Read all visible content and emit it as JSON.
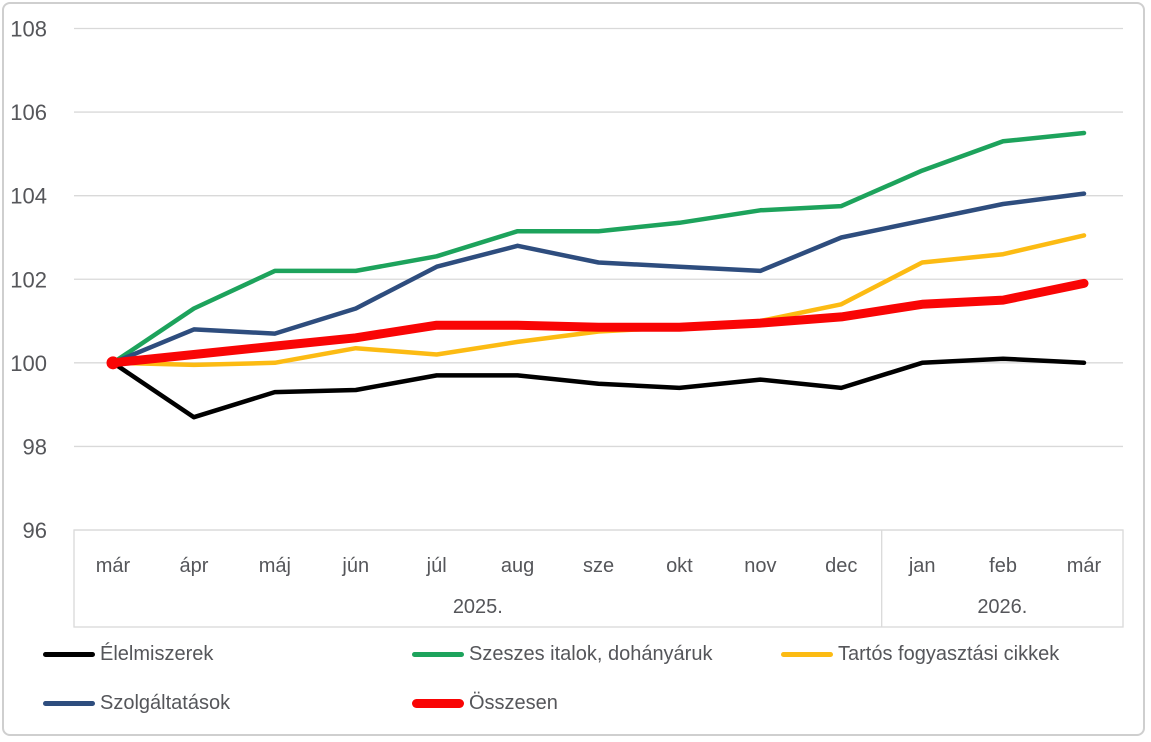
{
  "chart_data": {
    "type": "line",
    "title": "",
    "grid": "horizontal",
    "legend_position": "bottom",
    "x_axis": {
      "categories": [
        "már",
        "ápr",
        "máj",
        "jún",
        "júl",
        "aug",
        "sze",
        "okt",
        "nov",
        "dec",
        "jan",
        "feb",
        "már"
      ],
      "year_groups": [
        {
          "label": "2025.",
          "start_index": 0,
          "end_index": 9
        },
        {
          "label": "2026.",
          "start_index": 10,
          "end_index": 12
        }
      ]
    },
    "y_axis": {
      "ticks": [
        96,
        98,
        100,
        102,
        104,
        106,
        108
      ],
      "min": 96,
      "max": 108
    },
    "series": [
      {
        "name": "Élelmiszerek",
        "color": "#000000",
        "thick": false,
        "values": [
          100,
          98.7,
          99.3,
          99.35,
          99.7,
          99.7,
          99.5,
          99.4,
          99.6,
          99.4,
          100,
          100.1,
          100
        ]
      },
      {
        "name": "Szeszes italok, dohányáruk",
        "color": "#1da35c",
        "thick": false,
        "values": [
          100,
          101.3,
          102.2,
          102.2,
          102.55,
          103.15,
          103.15,
          103.35,
          103.65,
          103.75,
          104.6,
          105.3,
          105.5
        ]
      },
      {
        "name": "Tartós fogyasztási cikkek",
        "color": "#fcbb13",
        "thick": false,
        "values": [
          100,
          99.95,
          100,
          100.35,
          100.2,
          100.5,
          100.75,
          100.85,
          101,
          101.4,
          102.4,
          102.6,
          103.05
        ]
      },
      {
        "name": "Szolgáltatások",
        "color": "#2e4d7e",
        "thick": false,
        "values": [
          100,
          100.8,
          100.7,
          101.3,
          102.3,
          102.8,
          102.4,
          102.3,
          102.2,
          103,
          103.4,
          103.8,
          104.05
        ]
      },
      {
        "name": "Összesen",
        "color": "#f90505",
        "thick": true,
        "start_dot": true,
        "values": [
          100,
          100.2,
          100.4,
          100.6,
          100.9,
          100.9,
          100.85,
          100.85,
          100.95,
          101.1,
          101.4,
          101.5,
          101.9
        ]
      }
    ],
    "colors": {
      "gridline": "#d9d9d9",
      "axis_box_border": "#d9d9d9",
      "axis_text": "#55565a"
    }
  }
}
